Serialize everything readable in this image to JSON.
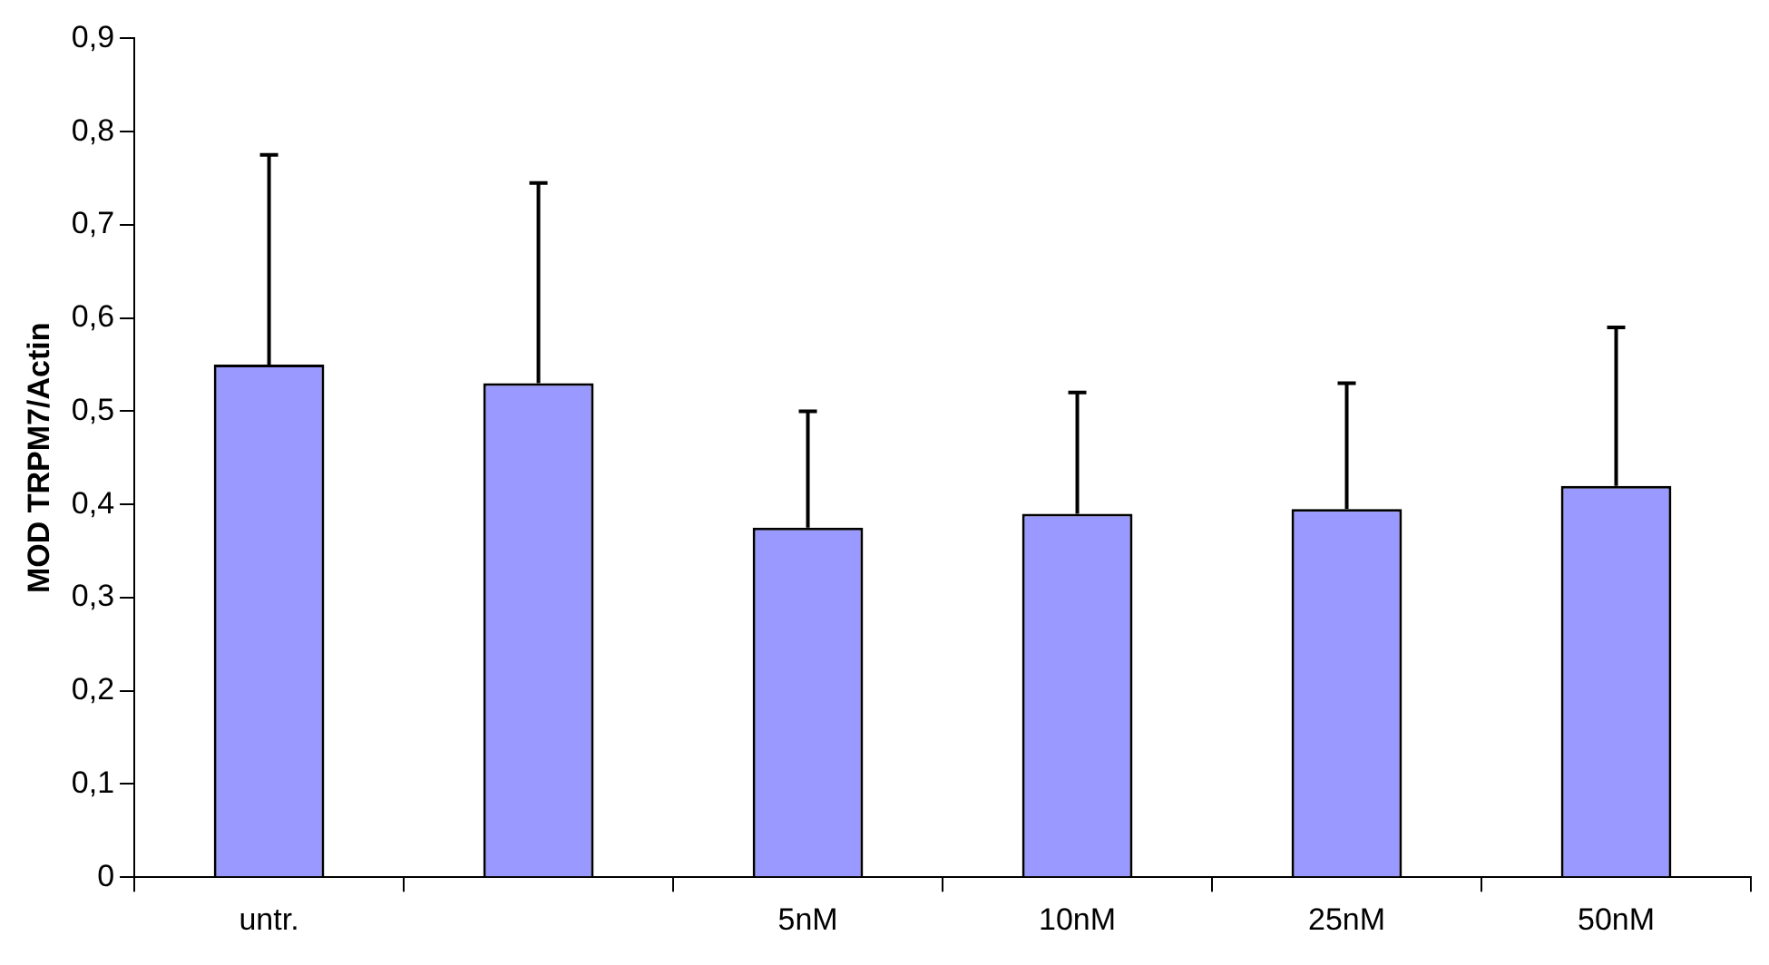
{
  "chart_data": {
    "type": "bar",
    "ylabel": "MOD TRPM7/Actin",
    "categories": [
      "untr.",
      null,
      "5nM",
      "10nM",
      "25nM",
      "50nM"
    ],
    "values": [
      0.55,
      0.53,
      0.375,
      0.39,
      0.395,
      0.42
    ],
    "errors": [
      [
        0.55,
        0.775
      ],
      [
        0.53,
        0.745
      ],
      [
        0.375,
        0.5
      ],
      [
        0.39,
        0.52
      ],
      [
        0.395,
        0.53
      ],
      [
        0.42,
        0.59
      ]
    ],
    "color": "#9999ff",
    "ylim": [
      0,
      0.9
    ],
    "yticks": [
      {
        "value": 0,
        "label": "0"
      },
      {
        "value": 0.1,
        "label": "0,1"
      },
      {
        "value": 0.2,
        "label": "0,2"
      },
      {
        "value": 0.3,
        "label": "0,3"
      },
      {
        "value": 0.4,
        "label": "0,4"
      },
      {
        "value": 0.5,
        "label": "0,5"
      },
      {
        "value": 0.6,
        "label": "0,6"
      },
      {
        "value": 0.7,
        "label": "0,7"
      },
      {
        "value": 0.8,
        "label": "0,8"
      },
      {
        "value": 0.9,
        "label": "0,9"
      }
    ],
    "grid": false,
    "legend": false
  }
}
